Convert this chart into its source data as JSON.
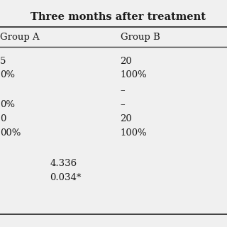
{
  "title": "Three months after treatment",
  "col_a_header": "Group A",
  "col_b_header": "Group B",
  "rows_a": [
    "5",
    "0%",
    "",
    "0%",
    "0",
    "00%",
    "",
    "4.336",
    "0.034*"
  ],
  "rows_b": [
    "20",
    "100%",
    "–",
    "–",
    "20",
    "100%",
    "",
    "",
    ""
  ],
  "background_color": "#f0f0f0",
  "text_color": "#1a1a1a",
  "font_size": 9.5,
  "title_font_size": 10.5,
  "line_color": "#333333",
  "figsize": [
    3.2,
    3.2
  ],
  "dpi": 100
}
